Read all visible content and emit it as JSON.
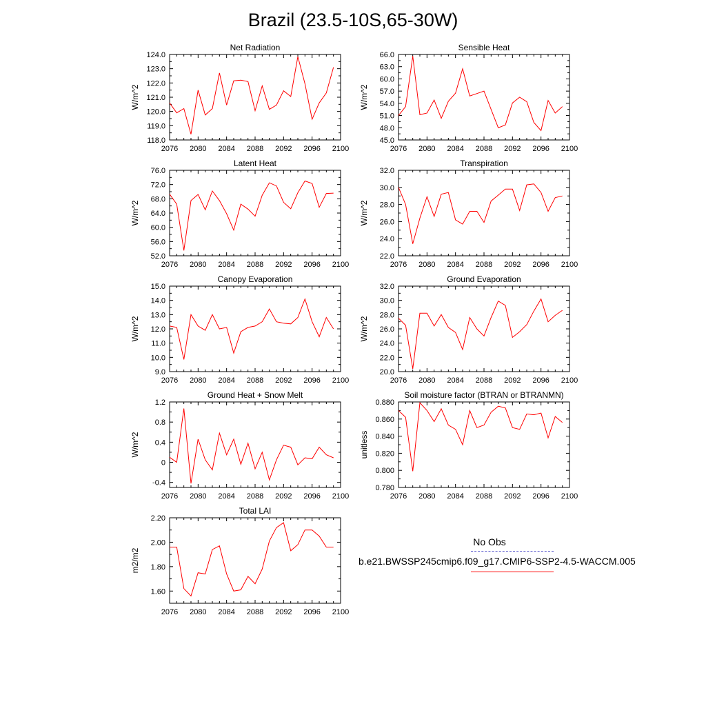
{
  "page": {
    "title": "Brazil (23.5-10S,65-30W)"
  },
  "legend": {
    "obs_label": "No Obs",
    "obs_color": "#5555cc",
    "case_label": "b.e21.BWSSP245cmip6.f09_g17.CMIP6-SSP2-4.5-WACCM.005",
    "case_color": "#ff0000"
  },
  "chart_data": [
    {
      "type": "line",
      "title": "Net Radiation",
      "ylabel": "W/m^2",
      "xlim": [
        2076,
        2100
      ],
      "ylim": [
        118.0,
        124.0
      ],
      "xticks": [
        "2076",
        "2080",
        "2084",
        "2088",
        "2092",
        "2096",
        "2100"
      ],
      "yticks": [
        "118.0",
        "119.0",
        "120.0",
        "121.0",
        "122.0",
        "123.0",
        "124.0"
      ],
      "series": [
        {
          "color": "#ff0000",
          "x": [
            2076,
            2077,
            2078,
            2079,
            2080,
            2081,
            2082,
            2083,
            2084,
            2085,
            2086,
            2087,
            2088,
            2089,
            2090,
            2091,
            2092,
            2093,
            2094,
            2095,
            2096,
            2097,
            2098,
            2099
          ],
          "values": [
            120.6,
            119.9,
            120.2,
            118.4,
            121.5,
            119.75,
            120.2,
            122.7,
            120.45,
            122.15,
            122.2,
            122.1,
            120.05,
            121.8,
            120.15,
            120.45,
            121.45,
            121.05,
            123.85,
            121.95,
            119.45,
            120.6,
            121.3,
            123.1
          ]
        }
      ]
    },
    {
      "type": "line",
      "title": "Sensible Heat",
      "ylabel": "W/m^2",
      "xlim": [
        2076,
        2100
      ],
      "ylim": [
        45.0,
        66.0
      ],
      "xticks": [
        "2076",
        "2080",
        "2084",
        "2088",
        "2092",
        "2096",
        "2100"
      ],
      "yticks": [
        "45.0",
        "48.0",
        "51.0",
        "54.0",
        "57.0",
        "60.0",
        "63.0",
        "66.0"
      ],
      "series": [
        {
          "color": "#ff0000",
          "x": [
            2076,
            2077,
            2078,
            2079,
            2080,
            2081,
            2082,
            2083,
            2084,
            2085,
            2086,
            2087,
            2088,
            2089,
            2090,
            2091,
            2092,
            2093,
            2094,
            2095,
            2096,
            2097,
            2098,
            2099
          ],
          "values": [
            51.0,
            53.2,
            65.6,
            51.2,
            51.6,
            54.8,
            50.3,
            54.5,
            56.5,
            62.5,
            55.8,
            56.4,
            57.0,
            52.5,
            48.0,
            48.7,
            54.1,
            55.5,
            54.4,
            49.3,
            47.3,
            54.7,
            51.6,
            53.2
          ]
        }
      ]
    },
    {
      "type": "line",
      "title": "Latent Heat",
      "ylabel": "W/m^2",
      "xlim": [
        2076,
        2100
      ],
      "ylim": [
        52.0,
        76.0
      ],
      "xticks": [
        "2076",
        "2080",
        "2084",
        "2088",
        "2092",
        "2096",
        "2100"
      ],
      "yticks": [
        "52.0",
        "56.0",
        "60.0",
        "64.0",
        "68.0",
        "72.0",
        "76.0"
      ],
      "series": [
        {
          "color": "#ff0000",
          "x": [
            2076,
            2077,
            2078,
            2079,
            2080,
            2081,
            2082,
            2083,
            2084,
            2085,
            2086,
            2087,
            2088,
            2089,
            2090,
            2091,
            2092,
            2093,
            2094,
            2095,
            2096,
            2097,
            2098,
            2099
          ],
          "values": [
            69.3,
            66.5,
            53.5,
            67.5,
            69.2,
            64.9,
            70.2,
            67.5,
            63.8,
            59.2,
            66.5,
            65.1,
            63.1,
            69.0,
            72.5,
            71.6,
            67.0,
            65.2,
            69.7,
            73.0,
            72.3,
            65.6,
            69.5,
            69.6
          ]
        }
      ]
    },
    {
      "type": "line",
      "title": "Transpiration",
      "ylabel": "W/m^2",
      "xlim": [
        2076,
        2100
      ],
      "ylim": [
        22.0,
        32.0
      ],
      "xticks": [
        "2076",
        "2080",
        "2084",
        "2088",
        "2092",
        "2096",
        "2100"
      ],
      "yticks": [
        "22.0",
        "24.0",
        "26.0",
        "28.0",
        "30.0",
        "32.0"
      ],
      "series": [
        {
          "color": "#ff0000",
          "x": [
            2076,
            2077,
            2078,
            2079,
            2080,
            2081,
            2082,
            2083,
            2084,
            2085,
            2086,
            2087,
            2088,
            2089,
            2090,
            2091,
            2092,
            2093,
            2094,
            2095,
            2096,
            2097,
            2098,
            2099
          ],
          "values": [
            30.0,
            28.0,
            23.4,
            26.4,
            28.9,
            26.6,
            29.2,
            29.4,
            26.2,
            25.7,
            27.2,
            27.2,
            25.9,
            28.4,
            29.1,
            29.8,
            29.8,
            27.3,
            30.3,
            30.4,
            29.4,
            27.2,
            28.8,
            29.0
          ]
        }
      ]
    },
    {
      "type": "line",
      "title": "Canopy Evaporation",
      "ylabel": "W/m^2",
      "xlim": [
        2076,
        2100
      ],
      "ylim": [
        9.0,
        15.0
      ],
      "xticks": [
        "2076",
        "2080",
        "2084",
        "2088",
        "2092",
        "2096",
        "2100"
      ],
      "yticks": [
        "9.0",
        "10.0",
        "11.0",
        "12.0",
        "13.0",
        "14.0",
        "15.0"
      ],
      "series": [
        {
          "color": "#ff0000",
          "x": [
            2076,
            2077,
            2078,
            2079,
            2080,
            2081,
            2082,
            2083,
            2084,
            2085,
            2086,
            2087,
            2088,
            2089,
            2090,
            2091,
            2092,
            2093,
            2094,
            2095,
            2096,
            2097,
            2098,
            2099
          ],
          "values": [
            12.2,
            12.1,
            9.85,
            13.0,
            12.2,
            11.9,
            13.0,
            12.0,
            12.1,
            10.3,
            11.8,
            12.1,
            12.2,
            12.5,
            13.4,
            12.5,
            12.4,
            12.35,
            12.8,
            14.1,
            12.5,
            11.45,
            12.8,
            12.0
          ]
        }
      ]
    },
    {
      "type": "line",
      "title": "Ground Evaporation",
      "ylabel": "W/m^2",
      "xlim": [
        2076,
        2100
      ],
      "ylim": [
        20.0,
        32.0
      ],
      "xticks": [
        "2076",
        "2080",
        "2084",
        "2088",
        "2092",
        "2096",
        "2100"
      ],
      "yticks": [
        "20.0",
        "22.0",
        "24.0",
        "26.0",
        "28.0",
        "30.0",
        "32.0"
      ],
      "series": [
        {
          "color": "#ff0000",
          "x": [
            2076,
            2077,
            2078,
            2079,
            2080,
            2081,
            2082,
            2083,
            2084,
            2085,
            2086,
            2087,
            2088,
            2089,
            2090,
            2091,
            2092,
            2093,
            2094,
            2095,
            2096,
            2097,
            2098,
            2099
          ],
          "values": [
            27.5,
            26.5,
            20.4,
            28.2,
            28.2,
            26.4,
            28.0,
            26.2,
            25.5,
            23.1,
            27.6,
            26.0,
            25.0,
            27.6,
            29.9,
            29.3,
            24.8,
            25.6,
            26.6,
            28.5,
            30.2,
            27.0,
            27.9,
            28.6
          ]
        }
      ]
    },
    {
      "type": "line",
      "title": "Ground Heat + Snow Melt",
      "ylabel": "W/m^2",
      "xlim": [
        2076,
        2100
      ],
      "ylim": [
        -0.5,
        1.2
      ],
      "xticks": [
        "2076",
        "2080",
        "2084",
        "2088",
        "2092",
        "2096",
        "2100"
      ],
      "yticks": [
        "-0.4",
        "0",
        "0.4",
        "0.8",
        "1.2"
      ],
      "series": [
        {
          "color": "#ff0000",
          "x": [
            2076,
            2077,
            2078,
            2079,
            2080,
            2081,
            2082,
            2083,
            2084,
            2085,
            2086,
            2087,
            2088,
            2089,
            2090,
            2091,
            2092,
            2093,
            2094,
            2095,
            2096,
            2097,
            2098,
            2099
          ],
          "values": [
            0.1,
            0.0,
            1.07,
            -0.42,
            0.46,
            0.05,
            -0.15,
            0.58,
            0.15,
            0.46,
            -0.04,
            0.38,
            -0.13,
            0.2,
            -0.35,
            0.05,
            0.34,
            0.3,
            -0.05,
            0.09,
            0.07,
            0.3,
            0.15,
            0.09
          ]
        }
      ]
    },
    {
      "type": "line",
      "title": "Soil moisture factor (BTRAN or BTRANMN)",
      "ylabel": "unitless",
      "xlim": [
        2076,
        2100
      ],
      "ylim": [
        0.78,
        0.88
      ],
      "xticks": [
        "2076",
        "2080",
        "2084",
        "2088",
        "2092",
        "2096",
        "2100"
      ],
      "yticks": [
        "0.780",
        "0.800",
        "0.820",
        "0.840",
        "0.860",
        "0.880"
      ],
      "series": [
        {
          "color": "#ff0000",
          "x": [
            2076,
            2077,
            2078,
            2079,
            2080,
            2081,
            2082,
            2083,
            2084,
            2085,
            2086,
            2087,
            2088,
            2089,
            2090,
            2091,
            2092,
            2093,
            2094,
            2095,
            2096,
            2097,
            2098,
            2099
          ],
          "values": [
            0.87,
            0.862,
            0.799,
            0.879,
            0.87,
            0.857,
            0.872,
            0.853,
            0.848,
            0.83,
            0.87,
            0.85,
            0.853,
            0.868,
            0.875,
            0.873,
            0.85,
            0.848,
            0.866,
            0.865,
            0.867,
            0.838,
            0.863,
            0.856
          ]
        }
      ]
    },
    {
      "type": "line",
      "title": "Total LAI",
      "ylabel": "m2/m2",
      "xlim": [
        2076,
        2100
      ],
      "ylim": [
        1.5,
        2.2
      ],
      "xticks": [
        "2076",
        "2080",
        "2084",
        "2088",
        "2092",
        "2096",
        "2100"
      ],
      "yticks": [
        "1.60",
        "1.80",
        "2.00",
        "2.20"
      ],
      "series": [
        {
          "color": "#ff0000",
          "x": [
            2076,
            2077,
            2078,
            2079,
            2080,
            2081,
            2082,
            2083,
            2084,
            2085,
            2086,
            2087,
            2088,
            2089,
            2090,
            2091,
            2092,
            2093,
            2094,
            2095,
            2096,
            2097,
            2098,
            2099
          ],
          "values": [
            1.96,
            1.96,
            1.62,
            1.56,
            1.75,
            1.74,
            1.94,
            1.97,
            1.74,
            1.6,
            1.61,
            1.72,
            1.66,
            1.78,
            2.01,
            2.12,
            2.16,
            1.93,
            1.98,
            2.1,
            2.1,
            2.05,
            1.96,
            1.96
          ]
        }
      ]
    }
  ]
}
